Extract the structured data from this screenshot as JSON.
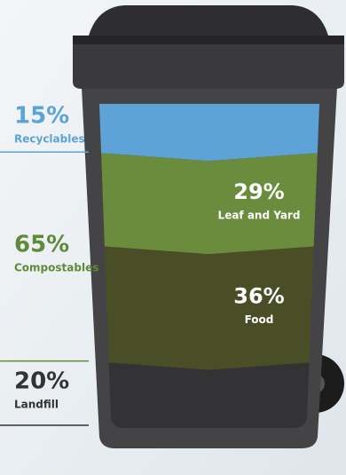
{
  "chart_data": {
    "type": "bin",
    "segments": [
      {
        "name": "Recyclables",
        "value": 15,
        "value_label": "15%",
        "color": "#5ea3d8"
      },
      {
        "name": "Compostables",
        "value": 65,
        "value_label": "65%",
        "color": "#5f8a3a",
        "parts": [
          {
            "name": "Leaf and Yard",
            "value": 29,
            "value_label": "29%",
            "color": "#6a8c3c"
          },
          {
            "name": "Food",
            "value": 36,
            "value_label": "36%",
            "color": "#4a4e26"
          }
        ]
      },
      {
        "name": "Landfill",
        "value": 20,
        "value_label": "20%",
        "color": "#333335"
      }
    ]
  }
}
